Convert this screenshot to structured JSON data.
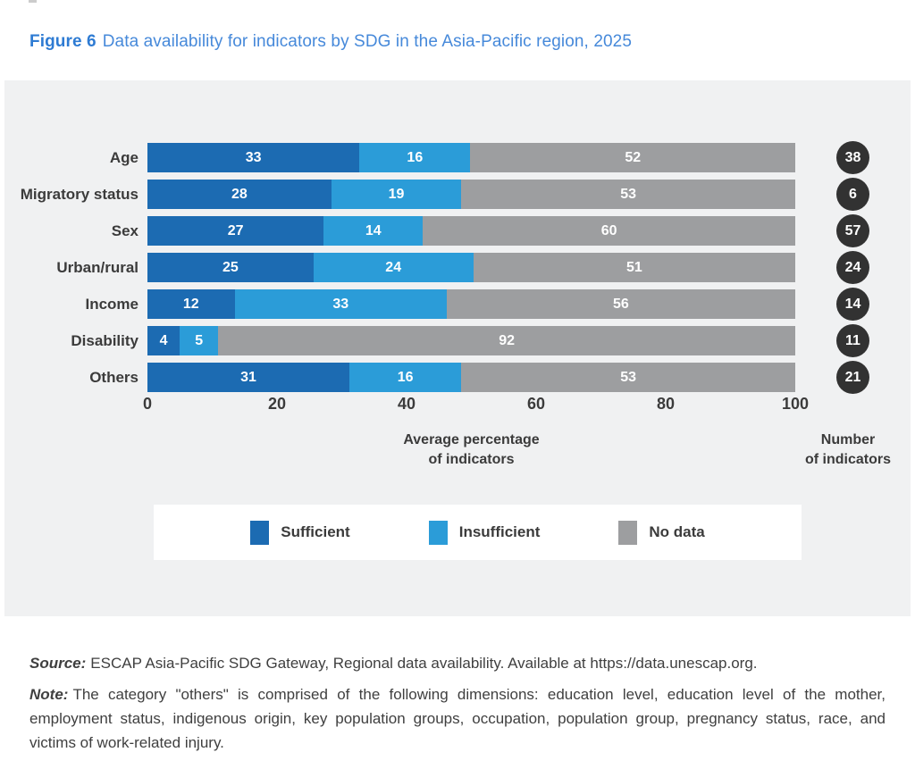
{
  "title": {
    "prefix": "Figure 6",
    "text": "Data availability for indicators by SDG in the Asia-Pacific region, 2025"
  },
  "colors": {
    "sufficient": "#1c6bb2",
    "insufficient": "#2b9cd8",
    "no_data": "#9d9ea0",
    "badge_circle": "#323232",
    "panel_background": "#f0f1f2",
    "title_blue": "#3b7ed3",
    "text_dark": "#3b3b3b"
  },
  "chart_data": {
    "type": "bar",
    "orientation": "horizontal",
    "stacked": true,
    "title": "Data availability for indicators by SDG in the Asia-Pacific region, 2025",
    "categories": [
      "Age",
      "Migratory status",
      "Sex",
      "Urban/rural",
      "Income",
      "Disability",
      "Others"
    ],
    "series": [
      {
        "name": "Sufficient",
        "color": "#1c6bb2",
        "values": [
          33,
          28,
          27,
          25,
          12,
          4,
          31
        ]
      },
      {
        "name": "Insufficient",
        "color": "#2b9cd8",
        "values": [
          16,
          19,
          14,
          24,
          33,
          5,
          16
        ]
      },
      {
        "name": "No data",
        "color": "#9d9ea0",
        "values": [
          52,
          53,
          60,
          51,
          56,
          92,
          53
        ]
      }
    ],
    "badges": {
      "label": "Number of indicators",
      "values": [
        38,
        6,
        57,
        24,
        14,
        11,
        21
      ]
    },
    "x_ticks": [
      0,
      20,
      40,
      60,
      80,
      100
    ],
    "xlim": [
      0,
      100
    ],
    "xlabel": "Average percentage of indicators",
    "grid": false,
    "legend_position": "bottom",
    "legend": [
      "Sufficient",
      "Insufficient",
      "No data"
    ]
  },
  "axis": {
    "xlabel_line1": "Average percentage",
    "xlabel_line2": "of indicators",
    "badge_col_line1": "Number",
    "badge_col_line2": "of indicators"
  },
  "footer": {
    "source_label": "Source:",
    "source_text": "ESCAP Asia-Pacific SDG Gateway, Regional data availability. Available at https://data.unescap.org.",
    "note_label": "Note:",
    "note_text": "The category \"others\" is comprised of the following dimensions: education level, education level of the mother, employment status, indigenous origin, key population groups, occupation, population group, pregnancy status, race, and victims of work-related injury."
  }
}
